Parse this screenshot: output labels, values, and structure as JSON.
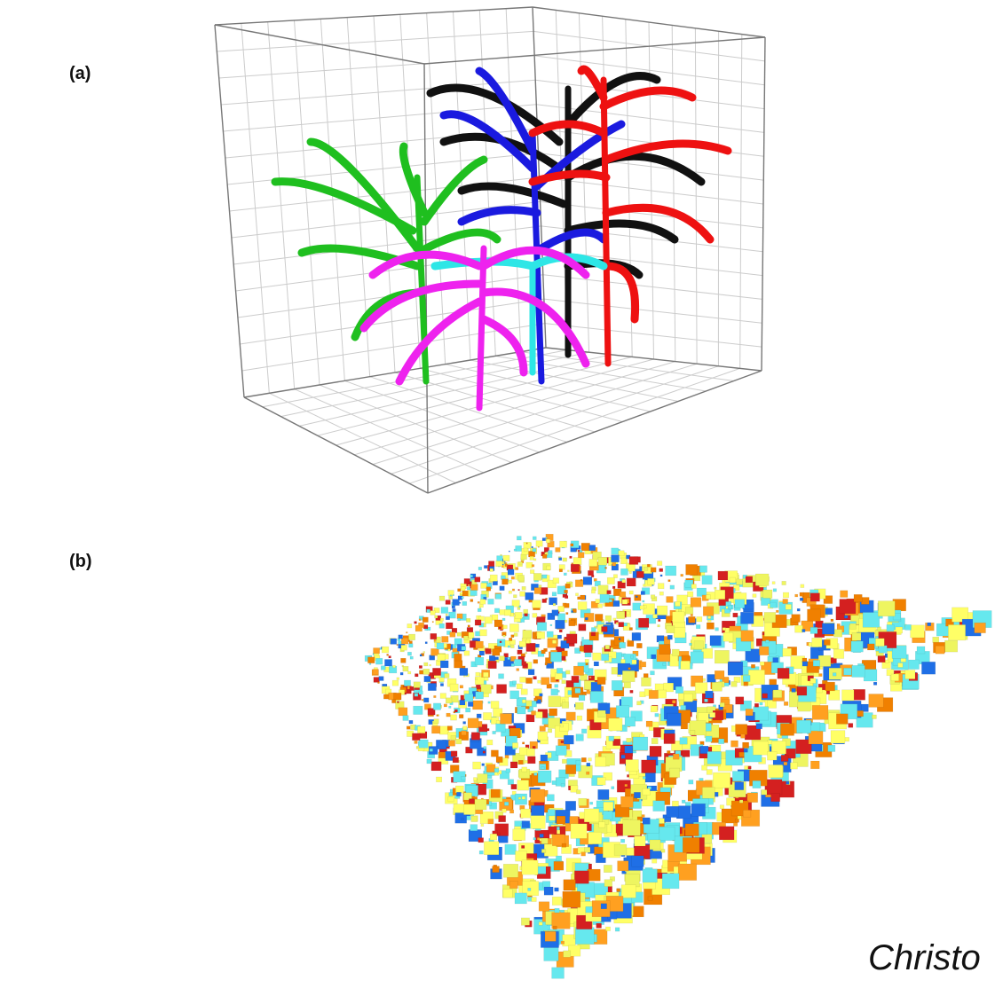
{
  "panels": [
    {
      "label": "(a)"
    },
    {
      "label": "(b)"
    }
  ],
  "footer": {
    "text": "Christo"
  }
}
